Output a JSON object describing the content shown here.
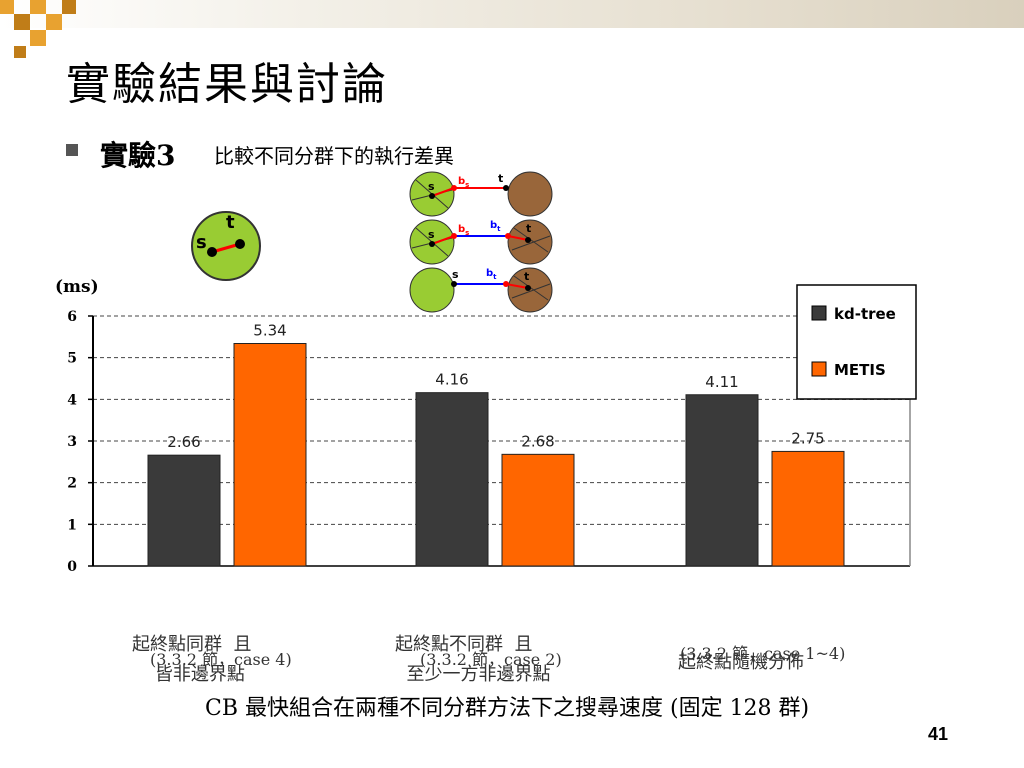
{
  "slide": {
    "title": "實驗結果與討論",
    "subtitle_bold": "實驗3",
    "subtitle_rest": "比較不同分群下的執行差異",
    "page_number": "41",
    "caption": "CB 最快組合在兩種不同分群方法下之搜尋速度 (固定 128 群)",
    "category_labels": [
      {
        "line1": "起終點同群  且",
        "line2": "    皆非邊界點",
        "note": "(3.3.2 節，case 4)"
      },
      {
        "line1": "起終點不同群  且",
        "line2": "  至少一方非邊界點",
        "note": "(3.3.2 節，case 2)"
      },
      {
        "line1": "起終點隨機分佈",
        "line2": "",
        "note": "(3.3.2 節，case 1~4)"
      }
    ],
    "diagram_labels": {
      "s": "s",
      "t": "t",
      "b": "b",
      "sub_s": "s",
      "sub_t": "t"
    }
  },
  "colors": {
    "kd_tree": "#3a3a3a",
    "metis": "#ff6600",
    "green_circle": "#99cc33",
    "brown_circle": "#99663a",
    "path_red": "#ff0000",
    "path_blue": "#0000ff",
    "deco_orange": "#e8a230",
    "deco_dark": "#c07d18"
  },
  "chart_data": {
    "type": "bar",
    "ylabel": "(ms)",
    "ylim": [
      0,
      6
    ],
    "yticks": [
      "0",
      "1",
      "2",
      "3",
      "4",
      "5",
      "6"
    ],
    "grid": "horizontal dashed",
    "legend_position": "top-right",
    "categories": [
      "起終點同群 且 皆非邊界點",
      "起終點不同群 且 至少一方非邊界點",
      "起終點隨機分佈"
    ],
    "series": [
      {
        "name": "kd-tree",
        "values": [
          2.66,
          4.16,
          4.11
        ],
        "labels": [
          "2.66",
          "4.16",
          "4.11"
        ]
      },
      {
        "name": "METIS",
        "values": [
          5.34,
          2.68,
          2.75
        ],
        "labels": [
          "5.34",
          "2.68",
          "2.75"
        ]
      }
    ]
  }
}
